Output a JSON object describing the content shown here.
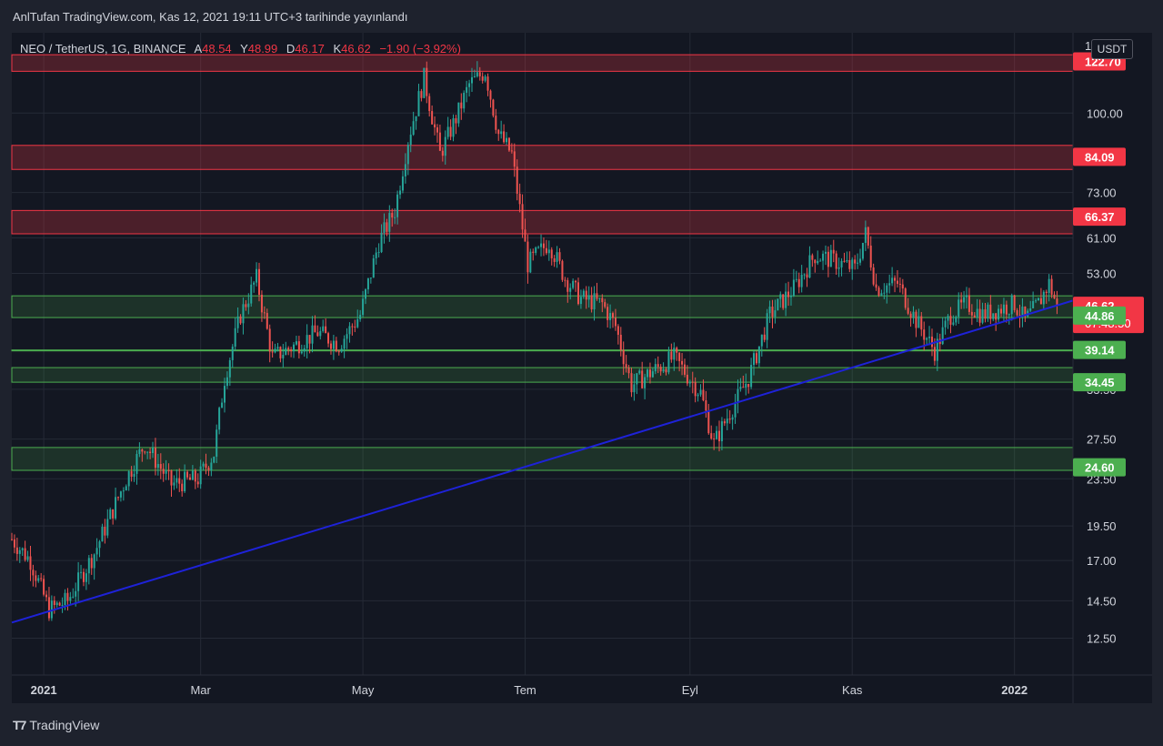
{
  "header": {
    "published_text": "AnlTufan TradingView.com, Kas 12, 2021 19:11 UTC+3 tarihinde yayınlandı"
  },
  "legend": {
    "symbol": "NEO / TetherUS, 1G, BINANCE",
    "open_label": "A",
    "open_value": "48.54",
    "high_label": "Y",
    "high_value": "48.99",
    "low_label": "D",
    "low_value": "46.17",
    "close_label": "K",
    "close_value": "46.62",
    "change": "−1.90 (−3.92%)"
  },
  "currency": "USDT",
  "brand": "TradingView",
  "colors": {
    "background": "#131722",
    "frame": "#1e222d",
    "up_candle": "#26a69a",
    "down_candle": "#ef5350",
    "resistance": "#f23645",
    "support": "#4caf50",
    "trendline": "#1e22d8",
    "grid": "#252a36"
  },
  "chart_data": {
    "type": "candlestick",
    "symbol": "NEO/USDT",
    "interval": "1D",
    "y_scale": "log",
    "xlim": [
      "2020-12-20",
      "2022-01-23"
    ],
    "ylim": [
      11.0,
      135.0
    ],
    "x_ticks": [
      {
        "label": "2021",
        "date": "2021-01-01",
        "bold": true
      },
      {
        "label": "Mar",
        "date": "2021-03-01",
        "bold": false
      },
      {
        "label": "May",
        "date": "2021-05-01",
        "bold": false
      },
      {
        "label": "Tem",
        "date": "2021-07-01",
        "bold": false
      },
      {
        "label": "Eyl",
        "date": "2021-09-01",
        "bold": false
      },
      {
        "label": "Kas",
        "date": "2021-11-01",
        "bold": false
      },
      {
        "label": "2022",
        "date": "2022-01-01",
        "bold": true
      }
    ],
    "y_ticks": [
      12.5,
      14.5,
      17.0,
      19.5,
      23.5,
      27.5,
      33.5,
      53.0,
      61.0,
      73.0,
      100.0
    ],
    "y_tick_labels": [
      "12.50",
      "14.50",
      "17.00",
      "19.50",
      "23.50",
      "27.50",
      "33.50",
      "53.00",
      "61.00",
      "73.00",
      "100.00"
    ],
    "anchors": [
      [
        "2020-12-20",
        18.5
      ],
      [
        "2020-12-27",
        17.0
      ],
      [
        "2021-01-03",
        14.0
      ],
      [
        "2021-01-10",
        14.5
      ],
      [
        "2021-01-20",
        17.5
      ],
      [
        "2021-02-01",
        23.5
      ],
      [
        "2021-02-08",
        27.0
      ],
      [
        "2021-02-18",
        23.0
      ],
      [
        "2021-02-28",
        23.5
      ],
      [
        "2021-03-06",
        26.0
      ],
      [
        "2021-03-10",
        35.0
      ],
      [
        "2021-03-16",
        45.0
      ],
      [
        "2021-03-22",
        52.0
      ],
      [
        "2021-03-28",
        38.0
      ],
      [
        "2021-04-06",
        40.0
      ],
      [
        "2021-04-14",
        42.0
      ],
      [
        "2021-04-22",
        40.0
      ],
      [
        "2021-04-30",
        45.0
      ],
      [
        "2021-05-07",
        60.0
      ],
      [
        "2021-05-13",
        68.0
      ],
      [
        "2021-05-18",
        90.0
      ],
      [
        "2021-05-24",
        115.0
      ],
      [
        "2021-05-30",
        85.0
      ],
      [
        "2021-06-05",
        98.0
      ],
      [
        "2021-06-10",
        112.0
      ],
      [
        "2021-06-16",
        118.0
      ],
      [
        "2021-06-21",
        92.0
      ],
      [
        "2021-06-26",
        85.0
      ],
      [
        "2021-07-02",
        55.0
      ],
      [
        "2021-07-10",
        60.0
      ],
      [
        "2021-07-16",
        52.0
      ],
      [
        "2021-07-22",
        48.0
      ],
      [
        "2021-07-30",
        47.0
      ],
      [
        "2021-08-04",
        43.0
      ],
      [
        "2021-08-10",
        34.0
      ],
      [
        "2021-08-18",
        36.0
      ],
      [
        "2021-08-26",
        38.0
      ],
      [
        "2021-09-05",
        33.0
      ],
      [
        "2021-09-10",
        27.0
      ],
      [
        "2021-09-15",
        30.0
      ],
      [
        "2021-09-23",
        35.0
      ],
      [
        "2021-10-01",
        45.0
      ],
      [
        "2021-10-10",
        50.0
      ],
      [
        "2021-10-18",
        57.0
      ],
      [
        "2021-10-24",
        56.0
      ],
      [
        "2021-11-02",
        54.0
      ],
      [
        "2021-11-06",
        62.0
      ],
      [
        "2021-11-10",
        50.0
      ],
      [
        "2021-11-18",
        51.0
      ],
      [
        "2021-11-25",
        44.0
      ],
      [
        "2021-12-02",
        39.0
      ],
      [
        "2021-12-08",
        45.0
      ],
      [
        "2021-12-14",
        47.0
      ],
      [
        "2021-12-20",
        45.0
      ],
      [
        "2021-12-26",
        46.0
      ],
      [
        "2022-01-01",
        47.0
      ],
      [
        "2022-01-05",
        44.0
      ],
      [
        "2022-01-10",
        47.0
      ],
      [
        "2022-01-14",
        51.0
      ],
      [
        "2022-01-17",
        46.62
      ]
    ],
    "resistance_zones": [
      {
        "low": 118.0,
        "high": 126.0,
        "label": "122.70"
      },
      {
        "low": 80.0,
        "high": 88.0,
        "label": "84.09"
      },
      {
        "low": 62.0,
        "high": 68.0,
        "label": "66.37"
      }
    ],
    "support_zones": [
      {
        "low": 44.5,
        "high": 48.5
      },
      {
        "low": 39.14,
        "high": 39.14
      },
      {
        "low": 34.45,
        "high": 36.5
      },
      {
        "low": 24.3,
        "high": 26.6
      }
    ],
    "trendline": {
      "start": [
        "2020-12-20",
        13.3
      ],
      "end": [
        "2022-01-23",
        47.6
      ]
    },
    "price_labels": [
      {
        "value": 122.7,
        "text": "122.70",
        "kind": "resistance"
      },
      {
        "value": 84.09,
        "text": "84.09",
        "kind": "resistance"
      },
      {
        "value": 66.37,
        "text": "66.37",
        "kind": "resistance"
      },
      {
        "value": 46.62,
        "text": "46.62",
        "kind": "last",
        "countdown": "07:48:50"
      },
      {
        "value": 44.86,
        "text": "44.86",
        "kind": "support"
      },
      {
        "value": 39.14,
        "text": "39.14",
        "kind": "support"
      },
      {
        "value": 34.45,
        "text": "34.45",
        "kind": "support"
      },
      {
        "value": 24.6,
        "text": "24.60",
        "kind": "support"
      }
    ],
    "axis_partial_label": "1"
  }
}
